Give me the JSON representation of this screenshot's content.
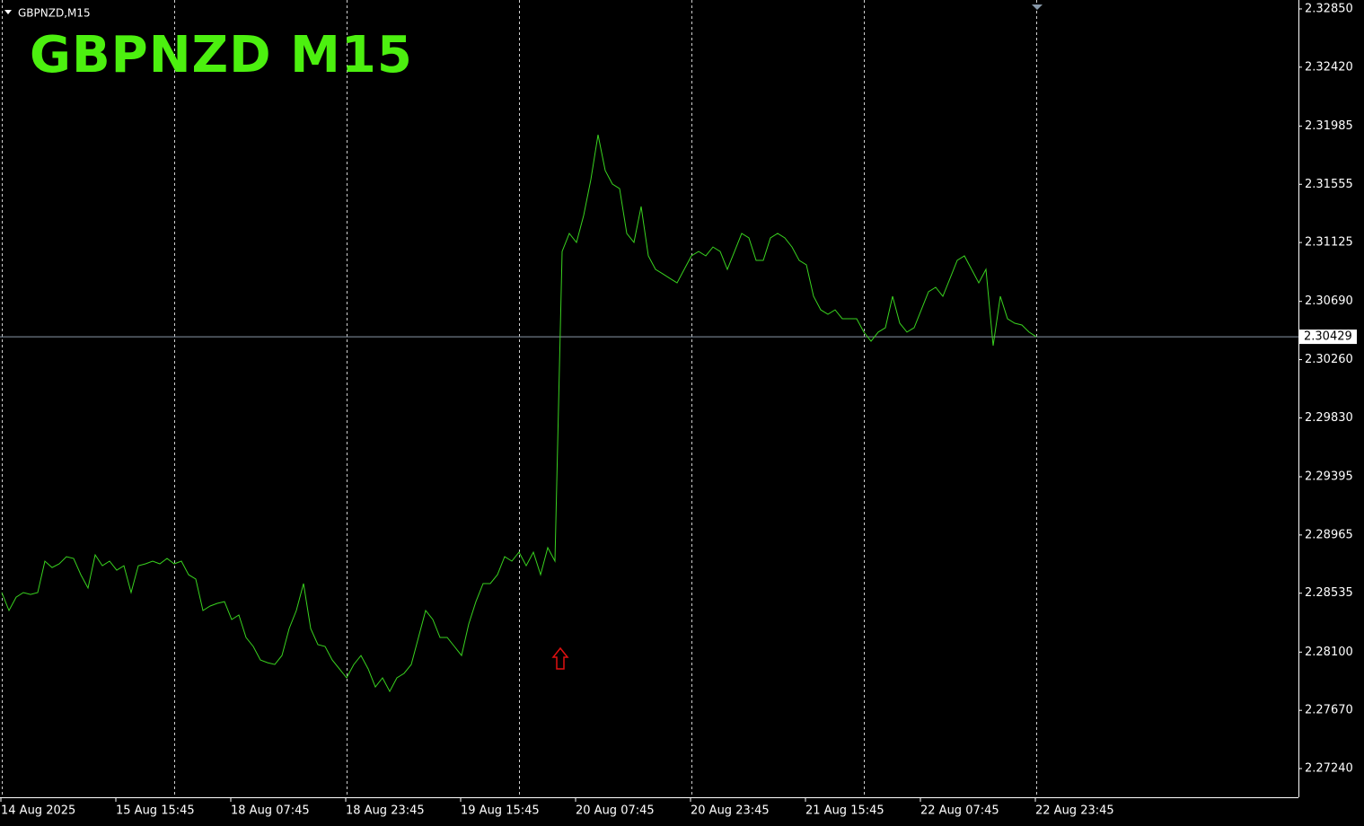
{
  "chart_data": {
    "type": "line",
    "symbol_label": "GBPNZD,M15",
    "title": "GBPNZD  M15",
    "categories": [
      "14 Aug 2025",
      null,
      null,
      null,
      null,
      null,
      null,
      null,
      null,
      null,
      null,
      null,
      null,
      null,
      null,
      null,
      "15 Aug 15:45",
      null,
      null,
      null,
      null,
      null,
      null,
      null,
      null,
      null,
      null,
      null,
      null,
      null,
      null,
      null,
      "18 Aug 07:45",
      null,
      null,
      null,
      null,
      null,
      null,
      null,
      null,
      null,
      null,
      null,
      null,
      null,
      null,
      null,
      "18 Aug 23:45",
      null,
      null,
      null,
      null,
      null,
      null,
      null,
      null,
      null,
      null,
      null,
      null,
      null,
      null,
      null,
      "19 Aug 15:45",
      null,
      null,
      null,
      null,
      null,
      null,
      null,
      null,
      null,
      null,
      null,
      null,
      null,
      null,
      null,
      "20 Aug 07:45",
      null,
      null,
      null,
      null,
      null,
      null,
      null,
      null,
      null,
      null,
      null,
      null,
      null,
      null,
      null,
      "20 Aug 23:45",
      null,
      null,
      null,
      null,
      null,
      null,
      null,
      null,
      null,
      null,
      null,
      null,
      null,
      null,
      null,
      "21 Aug 15:45",
      null,
      null,
      null,
      null,
      null,
      null,
      null,
      null,
      null,
      null,
      null,
      null,
      null,
      null,
      null,
      "22 Aug 07:45",
      null,
      null,
      null,
      null,
      null,
      null,
      null,
      null,
      null,
      null,
      null,
      null,
      null,
      null,
      null,
      "22 Aug 23:45"
    ],
    "values": [
      2.2854,
      2.28407,
      2.28506,
      2.2854,
      2.28526,
      2.2854,
      2.28772,
      2.28725,
      2.28752,
      2.28805,
      2.28792,
      2.28672,
      2.28573,
      2.28818,
      2.28738,
      2.28772,
      2.28705,
      2.28738,
      2.2854,
      2.28738,
      2.28752,
      2.28772,
      2.28752,
      2.28792,
      2.28752,
      2.28772,
      2.28672,
      2.28639,
      2.28407,
      2.2844,
      2.2846,
      2.28473,
      2.28341,
      2.28374,
      2.28208,
      2.28142,
      2.28042,
      2.28022,
      2.28009,
      2.28075,
      2.28274,
      2.28407,
      2.28606,
      2.28274,
      2.28155,
      2.28142,
      2.28042,
      2.27976,
      2.2791,
      2.28009,
      2.28075,
      2.27976,
      2.27843,
      2.2791,
      2.2781,
      2.2791,
      2.27943,
      2.28009,
      2.28208,
      2.28407,
      2.28341,
      2.28208,
      2.28208,
      2.28142,
      2.28075,
      2.28308,
      2.28473,
      2.28606,
      2.28606,
      2.28672,
      2.28805,
      2.28772,
      2.28838,
      2.28738,
      2.28838,
      2.28672,
      2.28871,
      2.28772,
      2.31059,
      2.31192,
      2.31126,
      2.31325,
      2.3159,
      2.31921,
      2.31656,
      2.31557,
      2.31523,
      2.31192,
      2.31126,
      2.31391,
      2.31026,
      2.30927,
      2.30894,
      2.3086,
      2.30827,
      2.30927,
      2.31026,
      2.31059,
      2.31026,
      2.31092,
      2.31059,
      2.30927,
      2.31059,
      2.31192,
      2.31159,
      2.30993,
      2.30993,
      2.31159,
      2.31192,
      2.31159,
      2.31092,
      2.30993,
      2.3096,
      2.30728,
      2.30628,
      2.30595,
      2.30628,
      2.30562,
      2.30562,
      2.30562,
      2.30463,
      2.30396,
      2.30463,
      2.30496,
      2.30728,
      2.30529,
      2.30463,
      2.30496,
      2.30628,
      2.30761,
      2.30794,
      2.30728,
      2.3086,
      2.30993,
      2.31026,
      2.30927,
      2.30827,
      2.30927,
      2.30363,
      2.30728,
      2.30562,
      2.30529,
      2.30516,
      2.30463,
      2.30429
    ],
    "color": "#39d21f",
    "current_price": 2.30429,
    "ylim": [
      2.27028,
      2.32916
    ],
    "yticks": [
      {
        "value": 2.3285,
        "label": "2.32850"
      },
      {
        "value": 2.3242,
        "label": "2.32420"
      },
      2.31985,
      2.31555,
      {
        "value": 2.31125,
        "label": "2.31125"
      },
      {
        "value": 2.3069,
        "label": "2.30690"
      },
      {
        "value": 2.3026,
        "label": "2.30260"
      },
      {
        "value": 2.2983,
        "label": "2.29830"
      },
      2.29395,
      2.28965,
      2.28535,
      {
        "value": 2.281,
        "label": "2.28100"
      },
      {
        "value": 2.2767,
        "label": "2.27670"
      },
      {
        "value": 2.2724,
        "label": "2.27240"
      }
    ],
    "grid": true
  }
}
